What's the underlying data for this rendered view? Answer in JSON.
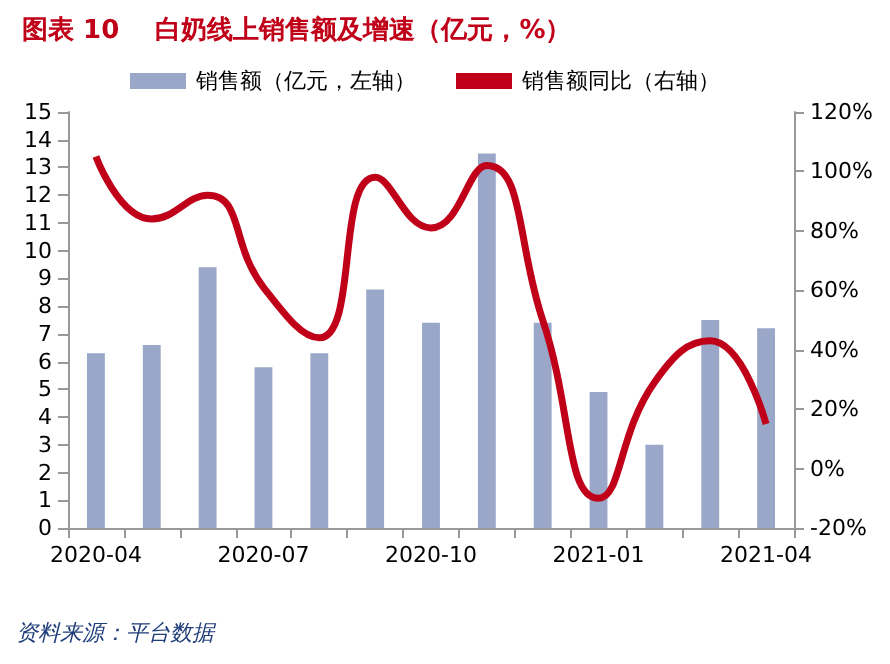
{
  "chart_data": {
    "type": "bar",
    "title": "图表 10    白奶线上销售额及增速（亿元，%）",
    "categories": [
      "2020-04",
      null,
      null,
      "2020-07",
      null,
      null,
      "2020-10",
      null,
      null,
      "2021-01",
      null,
      null,
      "2021-04"
    ],
    "series": [
      {
        "name": "销售额（亿元，左轴）",
        "color": "#9aa7c8",
        "values": [
          6.3,
          6.6,
          9.4,
          5.8,
          6.3,
          8.6,
          7.4,
          13.5,
          7.4,
          4.9,
          3.0,
          7.5,
          7.2
        ]
      },
      {
        "name": "销售额同比（右轴）",
        "type": "line",
        "axis": "y2",
        "color": "#c00018",
        "values": [
          105,
          84,
          92,
          61,
          44,
          98,
          81,
          102,
          50,
          -10,
          29,
          43,
          15
        ]
      }
    ],
    "ylim": [
      0,
      15
    ],
    "yticks": [
      0,
      1,
      2,
      3,
      4,
      5,
      6,
      7,
      8,
      9,
      10,
      11,
      12,
      13,
      14,
      15
    ],
    "y2lim": [
      -20,
      120
    ],
    "y2ticks": [
      {
        "value": -20,
        "label": "-20%"
      },
      {
        "value": 0,
        "label": "0%"
      },
      {
        "value": 20,
        "label": "20%"
      },
      {
        "value": 40,
        "label": "40%"
      },
      {
        "value": 60,
        "label": "60%"
      },
      {
        "value": 80,
        "label": "80%"
      },
      {
        "value": 100,
        "label": "100%"
      },
      {
        "value": 120,
        "label": "120%"
      }
    ],
    "grid": false,
    "legend": "top",
    "marker": "none",
    "line_style": "solid",
    "annotations": [
      "资料来源：平台数据"
    ]
  }
}
